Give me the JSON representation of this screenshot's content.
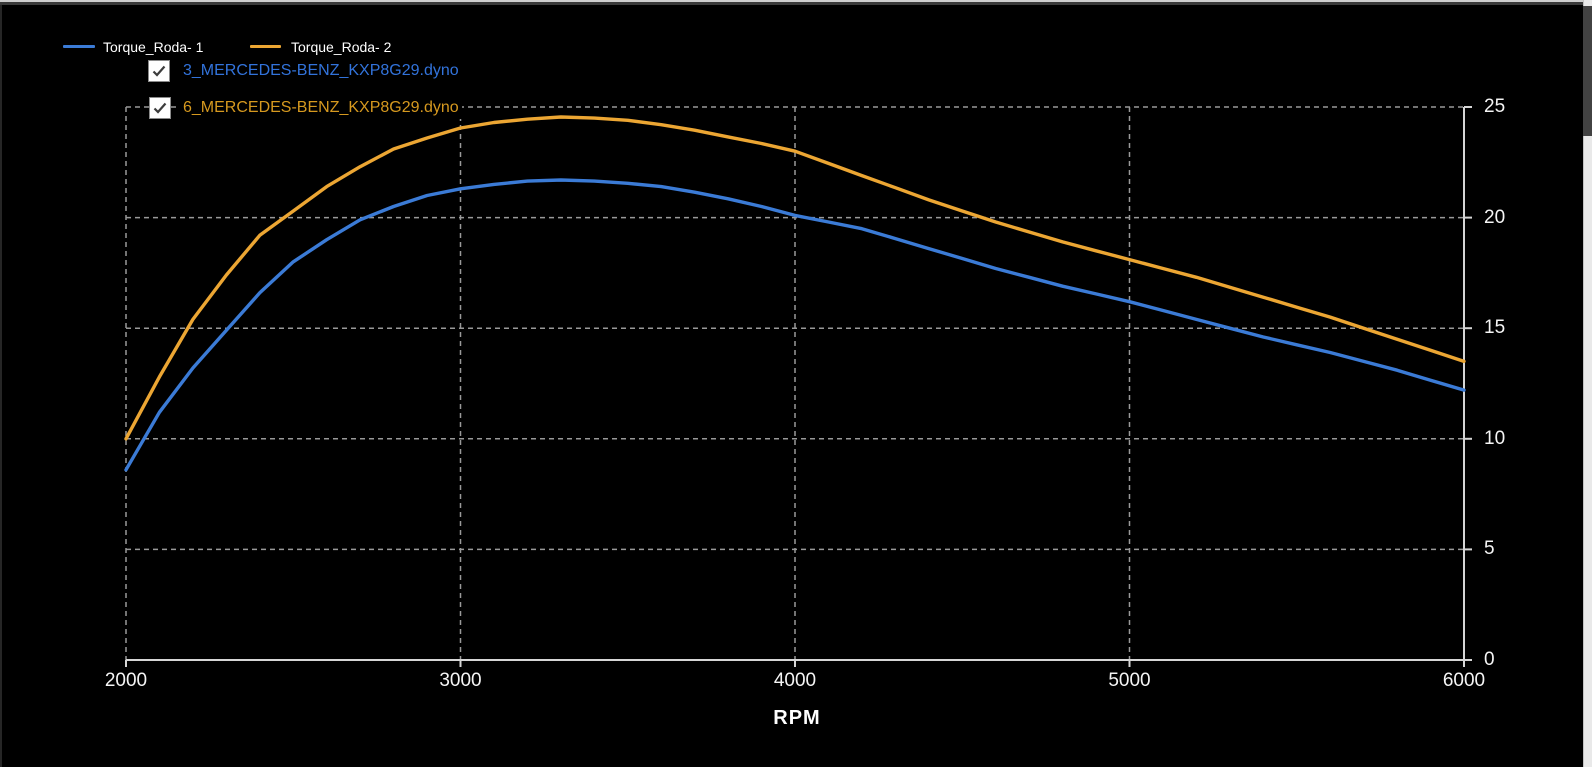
{
  "legend": {
    "items": [
      {
        "label": "Torque_Roda- 1"
      },
      {
        "label": "Torque_Roda- 2"
      }
    ]
  },
  "file_toggles": [
    {
      "label": "3_MERCEDES-BENZ_KXP8G29.dyno",
      "checked": true
    },
    {
      "label": "6_MERCEDES-BENZ_KXP8G29.dyno",
      "checked": true
    }
  ],
  "colors": {
    "background": "#000000",
    "series1": "#3b7bd6",
    "series2": "#eca633",
    "series1_text": "#3273db",
    "series2_text": "#d6991f",
    "grid": "#999999",
    "axis": "#d6d6d6",
    "tick_label": "#f5f5f5",
    "scrollbar_track": "#e9e9e9",
    "scrollbar_thumb": "#424242"
  },
  "chart_data": {
    "type": "line",
    "title": "",
    "xlabel": "RPM",
    "ylabel": "",
    "xlim": [
      2000,
      6000
    ],
    "ylim": [
      0,
      25
    ],
    "x_ticks": [
      2000,
      3000,
      4000,
      5000,
      6000
    ],
    "y_ticks": [
      0,
      5,
      10,
      15,
      20,
      25
    ],
    "grid": "dashed",
    "legend_position": "top-left",
    "y_axis_side": "right",
    "x": [
      2000,
      2100,
      2200,
      2300,
      2400,
      2500,
      2600,
      2700,
      2800,
      2900,
      3000,
      3100,
      3200,
      3300,
      3400,
      3500,
      3600,
      3700,
      3800,
      3900,
      4000,
      4100,
      4200,
      4300,
      4400,
      4500,
      4600,
      4700,
      4800,
      4900,
      5000,
      5100,
      5200,
      5300,
      5400,
      5500,
      5600,
      5700,
      5800,
      5900,
      6000
    ],
    "series": [
      {
        "name": "Torque_Roda- 1",
        "color": "#3b7bd6",
        "values": [
          8.6,
          11.2,
          13.2,
          14.9,
          16.6,
          18.0,
          19.0,
          19.9,
          20.5,
          21.0,
          21.3,
          21.5,
          21.65,
          21.7,
          21.65,
          21.55,
          21.4,
          21.15,
          20.85,
          20.5,
          20.1,
          19.8,
          19.5,
          19.05,
          18.6,
          18.15,
          17.7,
          17.3,
          16.9,
          16.55,
          16.2,
          15.8,
          15.4,
          15.0,
          14.6,
          14.25,
          13.9,
          13.5,
          13.1,
          12.65,
          12.2
        ]
      },
      {
        "name": "Torque_Roda- 2",
        "color": "#eca633",
        "values": [
          10.0,
          12.8,
          15.4,
          17.4,
          19.2,
          20.3,
          21.4,
          22.3,
          23.1,
          23.6,
          24.05,
          24.3,
          24.45,
          24.55,
          24.5,
          24.4,
          24.2,
          23.95,
          23.65,
          23.35,
          23.0,
          22.45,
          21.9,
          21.35,
          20.8,
          20.3,
          19.8,
          19.35,
          18.9,
          18.5,
          18.1,
          17.7,
          17.3,
          16.85,
          16.4,
          15.95,
          15.5,
          15.0,
          14.5,
          14.0,
          13.5
        ]
      }
    ]
  }
}
